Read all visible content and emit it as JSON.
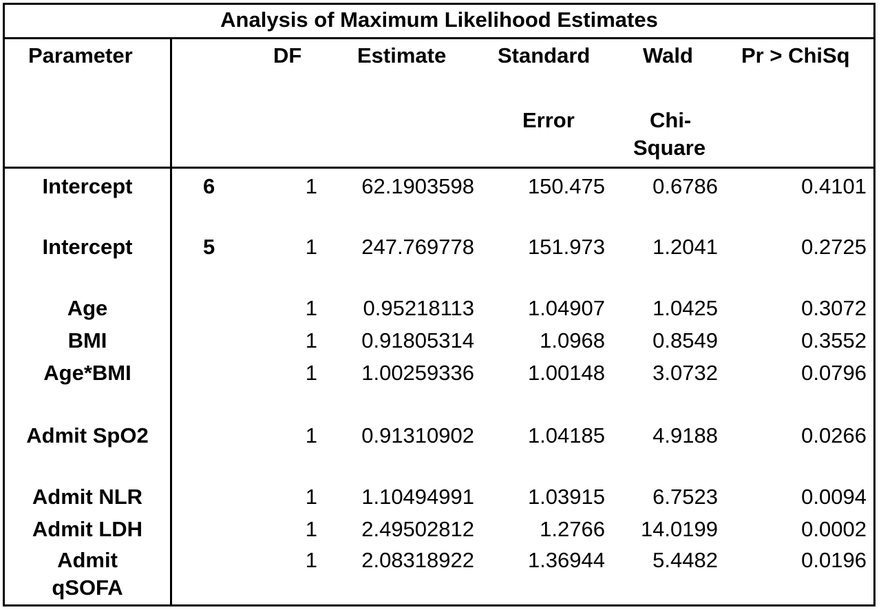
{
  "table": {
    "title": "Analysis of Maximum Likelihood Estimates",
    "headers": {
      "parameter": "Parameter",
      "df": "DF",
      "estimate": "Estimate",
      "se_line1": "Standard",
      "se_line2": "Error",
      "wald_line1": "Wald",
      "wald_line2a": "Chi-",
      "wald_line2b": "Square",
      "p": "Pr > ChiSq"
    },
    "rows": [
      {
        "parameter": "Intercept",
        "level": "6",
        "df": "1",
        "estimate": "62.1903598",
        "se": "150.475",
        "wald": "0.6786",
        "p": "0.4101"
      },
      {
        "parameter": "Intercept",
        "level": "5",
        "df": "1",
        "estimate": "247.769778",
        "se": "151.973",
        "wald": "1.2041",
        "p": "0.2725"
      },
      {
        "parameter": "Age",
        "level": "",
        "df": "1",
        "estimate": "0.95218113",
        "se": "1.04907",
        "wald": "1.0425",
        "p": "0.3072"
      },
      {
        "parameter": "BMI",
        "level": "",
        "df": "1",
        "estimate": "0.91805314",
        "se": "1.0968",
        "wald": "0.8549",
        "p": "0.3552"
      },
      {
        "parameter": "Age*BMI",
        "level": "",
        "df": "1",
        "estimate": "1.00259336",
        "se": "1.00148",
        "wald": "3.0732",
        "p": "0.0796"
      },
      {
        "parameter": "Admit SpO2",
        "level": "",
        "df": "1",
        "estimate": "0.91310902",
        "se": "1.04185",
        "wald": "4.9188",
        "p": "0.0266"
      },
      {
        "parameter": "Admit NLR",
        "level": "",
        "df": "1",
        "estimate": "1.10494991",
        "se": "1.03915",
        "wald": "6.7523",
        "p": "0.0094"
      },
      {
        "parameter": "Admit LDH",
        "level": "",
        "df": "1",
        "estimate": "2.49502812",
        "se": "1.2766",
        "wald": "14.0199",
        "p": "0.0002"
      },
      {
        "parameter_line1": "Admit",
        "parameter_line2": "qSOFA",
        "level": "",
        "df": "1",
        "estimate": "2.08318922",
        "se": "1.36944",
        "wald": "5.4482",
        "p": "0.0196"
      }
    ]
  }
}
